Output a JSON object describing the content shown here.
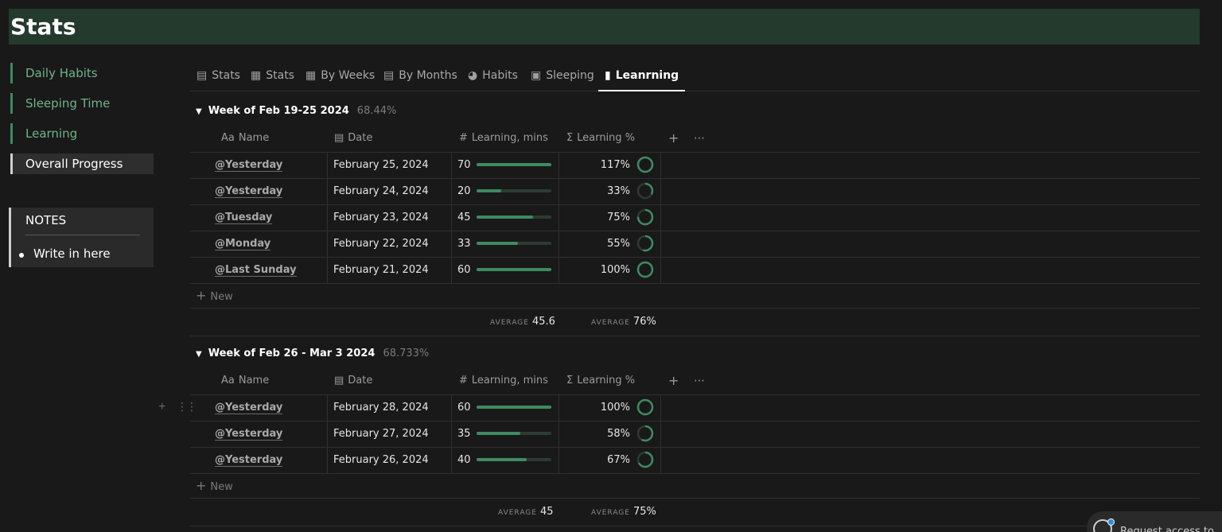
{
  "page": {
    "title": "Stats"
  },
  "sidebar": {
    "links": [
      {
        "label": "Daily Habits",
        "active": false
      },
      {
        "label": "Sleeping Time",
        "active": false
      },
      {
        "label": "Learning",
        "active": false
      },
      {
        "label": "Overall Progress",
        "active": true
      }
    ],
    "notes": {
      "title": "NOTES",
      "items": [
        "Write in here"
      ]
    }
  },
  "tabs": [
    {
      "label": "Stats",
      "icon": "bar-chart-icon"
    },
    {
      "label": "Stats",
      "icon": "table-icon"
    },
    {
      "label": "By Weeks",
      "icon": "calendar-icon"
    },
    {
      "label": "By Months",
      "icon": "calendar-icon"
    },
    {
      "label": "Habits",
      "icon": "pie-icon"
    },
    {
      "label": "Sleeping",
      "icon": "bed-icon"
    },
    {
      "label": "Leanrning",
      "icon": "bottle-icon",
      "active": true
    }
  ],
  "columns": {
    "name": "Name",
    "name_icon": "Aa",
    "date": "Date",
    "mins": "Learning, mins",
    "pct": "Learning %"
  },
  "groups": [
    {
      "title": "Week of Feb 19-25 2024",
      "percent": "68.44%",
      "rows": [
        {
          "name": "@Yesterday",
          "date": "February 25, 2024",
          "mins": 70,
          "mins_label": "70",
          "pct": "117%",
          "progress": 1.0
        },
        {
          "name": "@Yesterday",
          "date": "February 24, 2024",
          "mins": 20,
          "mins_label": "20",
          "pct": "33%",
          "progress": 0.33
        },
        {
          "name": "@Tuesday",
          "date": "February 23, 2024",
          "mins": 45,
          "mins_label": "45",
          "pct": "75%",
          "progress": 0.75
        },
        {
          "name": "@Monday",
          "date": "February 22, 2024",
          "mins": 33,
          "mins_label": "33",
          "pct": "55%",
          "progress": 0.55
        },
        {
          "name": "@Last Sunday",
          "date": "February 21, 2024",
          "mins": 60,
          "mins_label": "60",
          "pct": "100%",
          "progress": 1.0
        }
      ],
      "new_label": "New",
      "avg_label": "AVERAGE",
      "avg_mins": "45.6",
      "avg_pct": "76%"
    },
    {
      "title": "Week of Feb 26 - Mar 3 2024",
      "percent": "68.733%",
      "rows": [
        {
          "name": "@Yesterday",
          "date": "February 28, 2024",
          "mins": 60,
          "mins_label": "60",
          "pct": "100%",
          "progress": 1.0
        },
        {
          "name": "@Yesterday",
          "date": "February 27, 2024",
          "mins": 35,
          "mins_label": "35",
          "pct": "58%",
          "progress": 0.58
        },
        {
          "name": "@Yesterday",
          "date": "February 26, 2024",
          "mins": 40,
          "mins_label": "40",
          "pct": "67%",
          "progress": 0.67
        }
      ],
      "new_label": "New",
      "avg_label": "AVERAGE",
      "avg_mins": "45",
      "avg_pct": "75%"
    }
  ],
  "colors": {
    "accent": "#3f8a62",
    "header_bg": "#233a2d",
    "track": "#2d3b33"
  },
  "request_access": {
    "label": "Request access to"
  }
}
